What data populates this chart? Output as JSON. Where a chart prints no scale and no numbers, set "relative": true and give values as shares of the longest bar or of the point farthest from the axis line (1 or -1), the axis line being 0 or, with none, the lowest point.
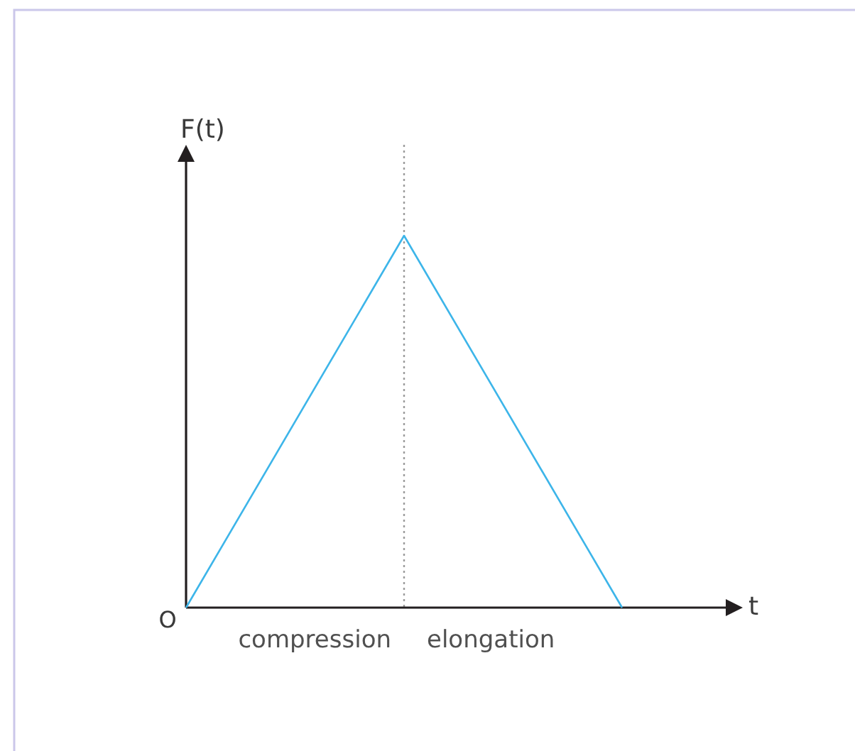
{
  "chart_data": {
    "type": "line",
    "xlabel": "t",
    "ylabel": "F(t)",
    "categories": [
      null,
      null,
      null
    ],
    "values": [
      0,
      1,
      0
    ],
    "color": "#3db5e9",
    "relative": true,
    "annotations": [
      "O",
      "compression",
      "elongation"
    ]
  }
}
